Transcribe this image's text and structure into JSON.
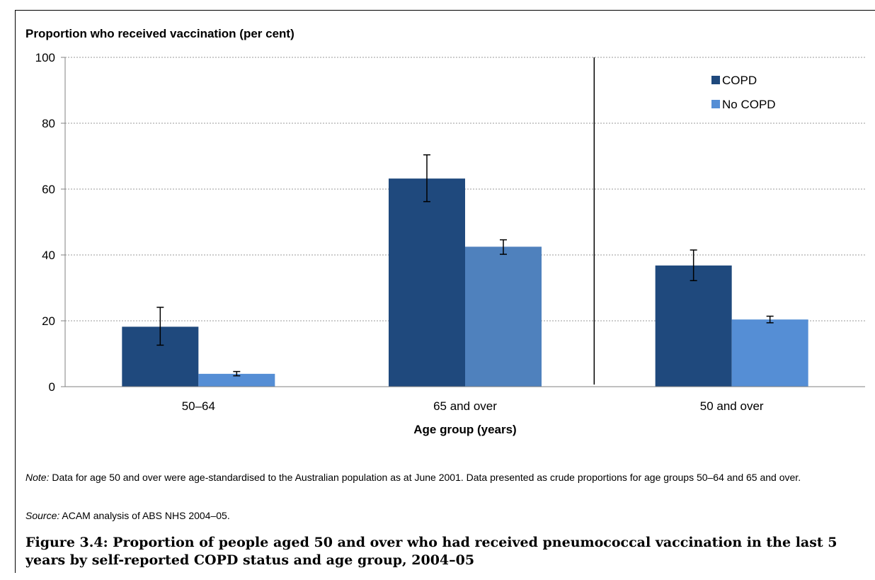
{
  "chart_data": {
    "type": "bar",
    "ylabel": "Proportion who received vaccination (per cent)",
    "xlabel": "Age group (years)",
    "ylim": [
      0,
      100
    ],
    "yticks": [
      0,
      20,
      40,
      60,
      80,
      100
    ],
    "grid": true,
    "legend_position": "top-right",
    "categories": [
      "50–64",
      "65 and over",
      "50 and over"
    ],
    "series": [
      {
        "name": "COPD",
        "color": "#1f497d",
        "values": [
          18.2,
          63.2,
          36.8
        ],
        "error_low": [
          12.6,
          56.2,
          32.2
        ],
        "error_high": [
          24.1,
          70.4,
          41.5
        ]
      },
      {
        "name": "No COPD",
        "color": "#558ed5",
        "values": [
          3.9,
          42.5,
          20.4
        ],
        "error_low": [
          3.3,
          40.2,
          19.4
        ],
        "error_high": [
          4.6,
          44.6,
          21.4
        ]
      }
    ]
  },
  "note": {
    "label": "Note:",
    "text": " Data for age 50 and over were age-standardised to the Australian population as at June 2001. Data presented as crude proportions for age groups 50–64 and 65 and over."
  },
  "source": {
    "label": "Source:",
    "text": " ACAM analysis of ABS NHS 2004–05."
  },
  "caption": "Figure 3.4: Proportion of people aged 50 and over who had received pneumococcal vaccination in the last 5 years by self-reported COPD status and age group, 2004–05"
}
